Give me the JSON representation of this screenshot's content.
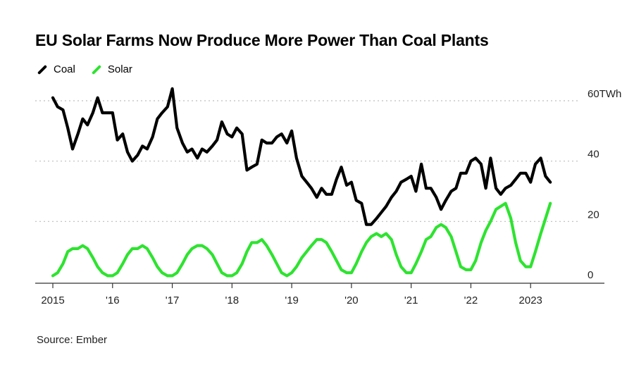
{
  "header": {
    "title": "EU Solar Farms Now Produce More Power Than Coal Plants"
  },
  "footer": {
    "source": "Source: Ember"
  },
  "chart_data": {
    "type": "line",
    "title": "EU Solar Farms Now Produce More Power Than Coal Plants",
    "xlabel": "",
    "ylabel": "",
    "ylim": [
      0,
      60
    ],
    "xlim": [
      2015.0,
      2024.0
    ],
    "y_ticks": [
      {
        "value": 60,
        "label": "60TWh"
      },
      {
        "value": 40,
        "label": "40"
      },
      {
        "value": 20,
        "label": "20"
      },
      {
        "value": 0,
        "label": "0"
      }
    ],
    "x_ticks": [
      {
        "value": 2015,
        "label": "2015"
      },
      {
        "value": 2016,
        "label": "'16"
      },
      {
        "value": 2017,
        "label": "'17"
      },
      {
        "value": 2018,
        "label": "'18"
      },
      {
        "value": 2019,
        "label": "'19"
      },
      {
        "value": 2020,
        "label": "'20"
      },
      {
        "value": 2021,
        "label": "'21"
      },
      {
        "value": 2022,
        "label": "'22"
      },
      {
        "value": 2023,
        "label": "2023"
      }
    ],
    "grid": "horizontal-dotted",
    "legend_position": "top-left",
    "series": [
      {
        "name": "Coal",
        "color": "#000000",
        "x": [
          2015.0,
          2015.08,
          2015.17,
          2015.25,
          2015.33,
          2015.42,
          2015.5,
          2015.58,
          2015.67,
          2015.75,
          2015.83,
          2015.92,
          2016.0,
          2016.08,
          2016.17,
          2016.25,
          2016.33,
          2016.42,
          2016.5,
          2016.58,
          2016.67,
          2016.75,
          2016.83,
          2016.92,
          2017.0,
          2017.08,
          2017.17,
          2017.25,
          2017.33,
          2017.42,
          2017.5,
          2017.58,
          2017.67,
          2017.75,
          2017.83,
          2017.92,
          2018.0,
          2018.08,
          2018.17,
          2018.25,
          2018.33,
          2018.42,
          2018.5,
          2018.58,
          2018.67,
          2018.75,
          2018.83,
          2018.92,
          2019.0,
          2019.08,
          2019.17,
          2019.25,
          2019.33,
          2019.42,
          2019.5,
          2019.58,
          2019.67,
          2019.75,
          2019.83,
          2019.92,
          2020.0,
          2020.08,
          2020.17,
          2020.25,
          2020.33,
          2020.42,
          2020.5,
          2020.58,
          2020.67,
          2020.75,
          2020.83,
          2020.92,
          2021.0,
          2021.08,
          2021.17,
          2021.25,
          2021.33,
          2021.42,
          2021.5,
          2021.58,
          2021.67,
          2021.75,
          2021.83,
          2021.92,
          2022.0,
          2022.08,
          2022.17,
          2022.25,
          2022.33,
          2022.42,
          2022.5,
          2022.58,
          2022.67,
          2022.75,
          2022.83,
          2022.92,
          2023.0,
          2023.08,
          2023.17,
          2023.25,
          2023.33
        ],
        "values": [
          61,
          58,
          57,
          51,
          44,
          49,
          54,
          52,
          56,
          61,
          56,
          56,
          56,
          47,
          49,
          43,
          40,
          42,
          45,
          44,
          48,
          54,
          56,
          58,
          64,
          51,
          46,
          43,
          44,
          41,
          44,
          43,
          45,
          47,
          53,
          49,
          48,
          51,
          49,
          37,
          38,
          39,
          47,
          46,
          46,
          48,
          49,
          46,
          50,
          41,
          35,
          33,
          31,
          28,
          31,
          29,
          29,
          34,
          38,
          32,
          33,
          27,
          26,
          19,
          19,
          21,
          23,
          25,
          28,
          30,
          33,
          34,
          35,
          30,
          39,
          31,
          31,
          28,
          24,
          27,
          30,
          31,
          36,
          36,
          40,
          41,
          39,
          31,
          41,
          31,
          29,
          31,
          32,
          34,
          36,
          36,
          33,
          39,
          41,
          35,
          33
        ]
      },
      {
        "name": "Solar",
        "color": "#2ee330",
        "x": [
          2015.0,
          2015.08,
          2015.17,
          2015.25,
          2015.33,
          2015.42,
          2015.5,
          2015.58,
          2015.67,
          2015.75,
          2015.83,
          2015.92,
          2016.0,
          2016.08,
          2016.17,
          2016.25,
          2016.33,
          2016.42,
          2016.5,
          2016.58,
          2016.67,
          2016.75,
          2016.83,
          2016.92,
          2017.0,
          2017.08,
          2017.17,
          2017.25,
          2017.33,
          2017.42,
          2017.5,
          2017.58,
          2017.67,
          2017.75,
          2017.83,
          2017.92,
          2018.0,
          2018.08,
          2018.17,
          2018.25,
          2018.33,
          2018.42,
          2018.5,
          2018.58,
          2018.67,
          2018.75,
          2018.83,
          2018.92,
          2019.0,
          2019.08,
          2019.17,
          2019.25,
          2019.33,
          2019.42,
          2019.5,
          2019.58,
          2019.67,
          2019.75,
          2019.83,
          2019.92,
          2020.0,
          2020.08,
          2020.17,
          2020.25,
          2020.33,
          2020.42,
          2020.5,
          2020.58,
          2020.67,
          2020.75,
          2020.83,
          2020.92,
          2021.0,
          2021.08,
          2021.17,
          2021.25,
          2021.33,
          2021.42,
          2021.5,
          2021.58,
          2021.67,
          2021.75,
          2021.83,
          2021.92,
          2022.0,
          2022.08,
          2022.17,
          2022.25,
          2022.33,
          2022.42,
          2022.5,
          2022.58,
          2022.67,
          2022.75,
          2022.83,
          2022.92,
          2023.0,
          2023.08,
          2023.17,
          2023.25,
          2023.33
        ],
        "values": [
          2,
          3,
          6,
          10,
          11,
          11,
          12,
          11,
          8,
          5,
          3,
          2,
          2,
          3,
          6,
          9,
          11,
          11,
          12,
          11,
          8,
          5,
          3,
          2,
          2,
          3,
          6,
          9,
          11,
          12,
          12,
          11,
          9,
          6,
          3,
          2,
          2,
          3,
          6,
          10,
          13,
          13,
          14,
          12,
          9,
          6,
          3,
          2,
          3,
          5,
          8,
          10,
          12,
          14,
          14,
          13,
          10,
          7,
          4,
          3,
          3,
          6,
          10,
          13,
          15,
          16,
          15,
          16,
          14,
          9,
          5,
          3,
          3,
          6,
          10,
          14,
          15,
          18,
          19,
          18,
          15,
          10,
          5,
          4,
          4,
          7,
          13,
          17,
          20,
          24,
          25,
          26,
          21,
          13,
          7,
          5,
          5,
          10,
          16,
          21,
          26
        ]
      }
    ]
  }
}
